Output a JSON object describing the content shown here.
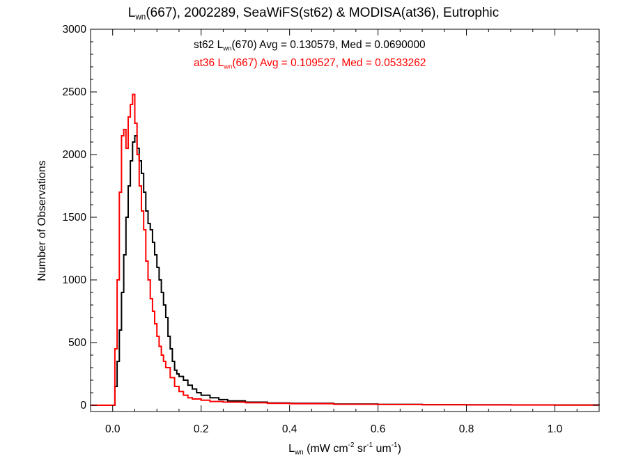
{
  "title": {
    "base": "L",
    "sub": "wn",
    "rest": "(667), 2002289, SeaWiFS(st62) & MODISA(at36), Eutrophic"
  },
  "annotations": {
    "st62": {
      "prefix": "st62 L",
      "sub": "wn",
      "rest": "(670) Avg = 0.130579, Med = 0.0690000",
      "color": "#000000"
    },
    "at36": {
      "prefix": "at36 L",
      "sub": "wn",
      "rest": "(667) Avg = 0.109527, Med = 0.0533262",
      "color": "#ff0000"
    }
  },
  "x_label": {
    "base": "L",
    "sub": "wn",
    "p1": " (mW cm",
    "sup1": "-2",
    "p2": " sr",
    "sup2": "-1",
    "p3": " um",
    "sup3": "-1",
    "p4": ")"
  },
  "y_label": "Number of Observations",
  "chart_data": {
    "type": "line",
    "step": true,
    "xlim": [
      -0.05,
      1.1
    ],
    "ylim": [
      -50,
      3000
    ],
    "x_ticks": [
      "0.0",
      "0.2",
      "0.4",
      "0.6",
      "0.8",
      "1.0"
    ],
    "x_tick_values": [
      0.0,
      0.2,
      0.4,
      0.6,
      0.8,
      1.0
    ],
    "y_ticks": [
      "0",
      "500",
      "1000",
      "1500",
      "2000",
      "2500",
      "3000"
    ],
    "y_tick_values": [
      0,
      500,
      1000,
      1500,
      2000,
      2500,
      3000
    ],
    "series": [
      {
        "name": "st62",
        "color": "#000000",
        "x": [
          -0.05,
          0.0,
          0.005,
          0.01,
          0.015,
          0.02,
          0.025,
          0.03,
          0.035,
          0.04,
          0.045,
          0.05,
          0.055,
          0.06,
          0.065,
          0.07,
          0.075,
          0.08,
          0.085,
          0.09,
          0.095,
          0.1,
          0.105,
          0.11,
          0.115,
          0.12,
          0.125,
          0.13,
          0.135,
          0.14,
          0.145,
          0.15,
          0.16,
          0.17,
          0.18,
          0.19,
          0.2,
          0.22,
          0.24,
          0.26,
          0.3,
          0.35,
          0.4,
          0.5,
          0.6,
          0.7,
          0.8,
          0.9,
          1.0,
          1.1
        ],
        "y": [
          0,
          0,
          150,
          350,
          600,
          900,
          1200,
          1500,
          1750,
          1950,
          2100,
          2150,
          2050,
          1950,
          1850,
          1700,
          1550,
          1450,
          1400,
          1300,
          1200,
          1100,
          1000,
          900,
          800,
          700,
          550,
          450,
          350,
          280,
          250,
          230,
          200,
          160,
          130,
          100,
          80,
          60,
          45,
          35,
          25,
          18,
          15,
          10,
          7,
          5,
          4,
          3,
          2,
          1
        ]
      },
      {
        "name": "at36",
        "color": "#ff0000",
        "x": [
          -0.05,
          0.0,
          0.005,
          0.01,
          0.015,
          0.02,
          0.025,
          0.03,
          0.035,
          0.04,
          0.045,
          0.05,
          0.055,
          0.06,
          0.065,
          0.07,
          0.075,
          0.08,
          0.085,
          0.09,
          0.095,
          0.1,
          0.105,
          0.11,
          0.115,
          0.12,
          0.13,
          0.14,
          0.15,
          0.16,
          0.17,
          0.18,
          0.2,
          0.22,
          0.25,
          0.3,
          0.35,
          0.4,
          0.5,
          0.6,
          0.7,
          0.8,
          0.9,
          1.0,
          1.1
        ],
        "y": [
          0,
          0,
          450,
          1000,
          1700,
          2150,
          2200,
          2050,
          2300,
          2400,
          2480,
          2250,
          2000,
          1750,
          1550,
          1400,
          1150,
          1000,
          850,
          750,
          650,
          550,
          470,
          400,
          350,
          300,
          220,
          150,
          110,
          80,
          60,
          50,
          40,
          30,
          25,
          20,
          15,
          12,
          8,
          6,
          4,
          3,
          2,
          1,
          1
        ]
      }
    ]
  }
}
